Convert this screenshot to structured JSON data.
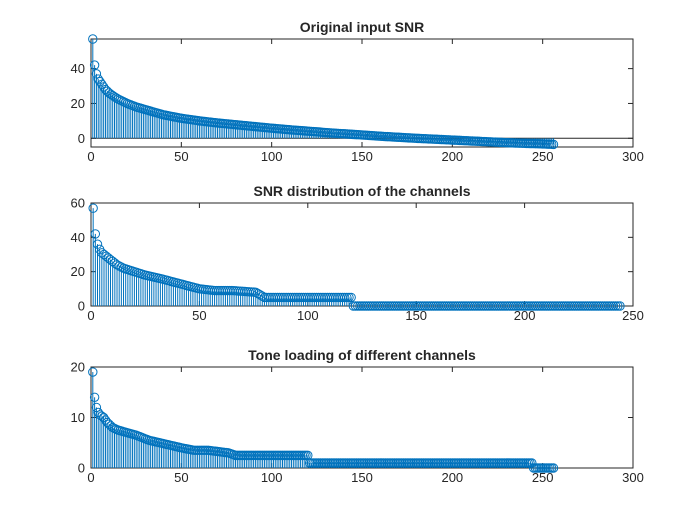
{
  "chart_data": [
    {
      "type": "stem",
      "title": "Original input SNR",
      "xlabel": "",
      "ylabel": "",
      "xlim": [
        0,
        300
      ],
      "ylim": [
        -5,
        57
      ],
      "xticks": [
        0,
        50,
        100,
        150,
        200,
        250,
        300
      ],
      "yticks": [
        0,
        20,
        40
      ],
      "x": [
        1,
        2,
        3,
        4,
        6,
        8,
        10,
        12,
        15,
        20,
        25,
        30,
        40,
        50,
        60,
        70,
        80,
        90,
        100,
        110,
        120,
        130,
        140,
        150,
        160,
        170,
        180,
        190,
        200,
        210,
        220,
        230,
        240,
        250,
        256
      ],
      "y": [
        57,
        42,
        37,
        34,
        31,
        28,
        26,
        24.5,
        22.5,
        20,
        18,
        16.5,
        13.5,
        11.5,
        10,
        8.8,
        7.8,
        6.8,
        5.8,
        4.9,
        4.1,
        3.3,
        2.6,
        1.9,
        1.2,
        0.6,
        0,
        -0.5,
        -1,
        -1.5,
        -2,
        -2.5,
        -2.9,
        -3.2,
        -3.5
      ],
      "color": "#0072bd",
      "baseline": 0,
      "grid": false,
      "legend": "none"
    },
    {
      "type": "stem",
      "title": "SNR distribution of the channels",
      "xlabel": "",
      "ylabel": "",
      "xlim": [
        0,
        250
      ],
      "ylim": [
        0,
        60
      ],
      "xticks": [
        0,
        50,
        100,
        150,
        200,
        250
      ],
      "yticks": [
        0,
        20,
        40,
        60
      ],
      "x": [
        1,
        2,
        3,
        4,
        5,
        7,
        9,
        12,
        15,
        20,
        25,
        32,
        38,
        44,
        50,
        57,
        65,
        76,
        80,
        90,
        100,
        110,
        120,
        121,
        150,
        200,
        244
      ],
      "y": [
        57,
        42,
        36,
        33,
        31,
        29,
        27,
        24,
        22,
        20,
        18,
        16,
        14,
        12,
        10,
        9,
        9,
        8,
        5,
        5,
        5,
        5,
        5,
        0,
        0,
        0,
        0
      ],
      "color": "#0072bd",
      "baseline": 0,
      "grid": false,
      "legend": "none"
    },
    {
      "type": "stem",
      "title": "Tone loading of different channels",
      "xlabel": "",
      "ylabel": "",
      "xlim": [
        0,
        300
      ],
      "ylim": [
        0,
        20
      ],
      "xticks": [
        0,
        50,
        100,
        150,
        200,
        250,
        300
      ],
      "yticks": [
        0,
        10,
        20
      ],
      "x": [
        1,
        2,
        3,
        4,
        5,
        7,
        9,
        12,
        15,
        20,
        25,
        32,
        38,
        44,
        50,
        57,
        65,
        76,
        80,
        100,
        120,
        121,
        150,
        200,
        244,
        245,
        256
      ],
      "y": [
        19,
        14,
        12,
        11,
        10.5,
        10,
        9,
        8,
        7.5,
        7,
        6.5,
        5.5,
        5,
        4.5,
        4,
        3.5,
        3.5,
        3,
        2.5,
        2.5,
        2.5,
        1,
        1,
        1,
        1,
        0,
        0
      ],
      "color": "#0072bd",
      "baseline": 0,
      "grid": false,
      "legend": "none"
    }
  ]
}
